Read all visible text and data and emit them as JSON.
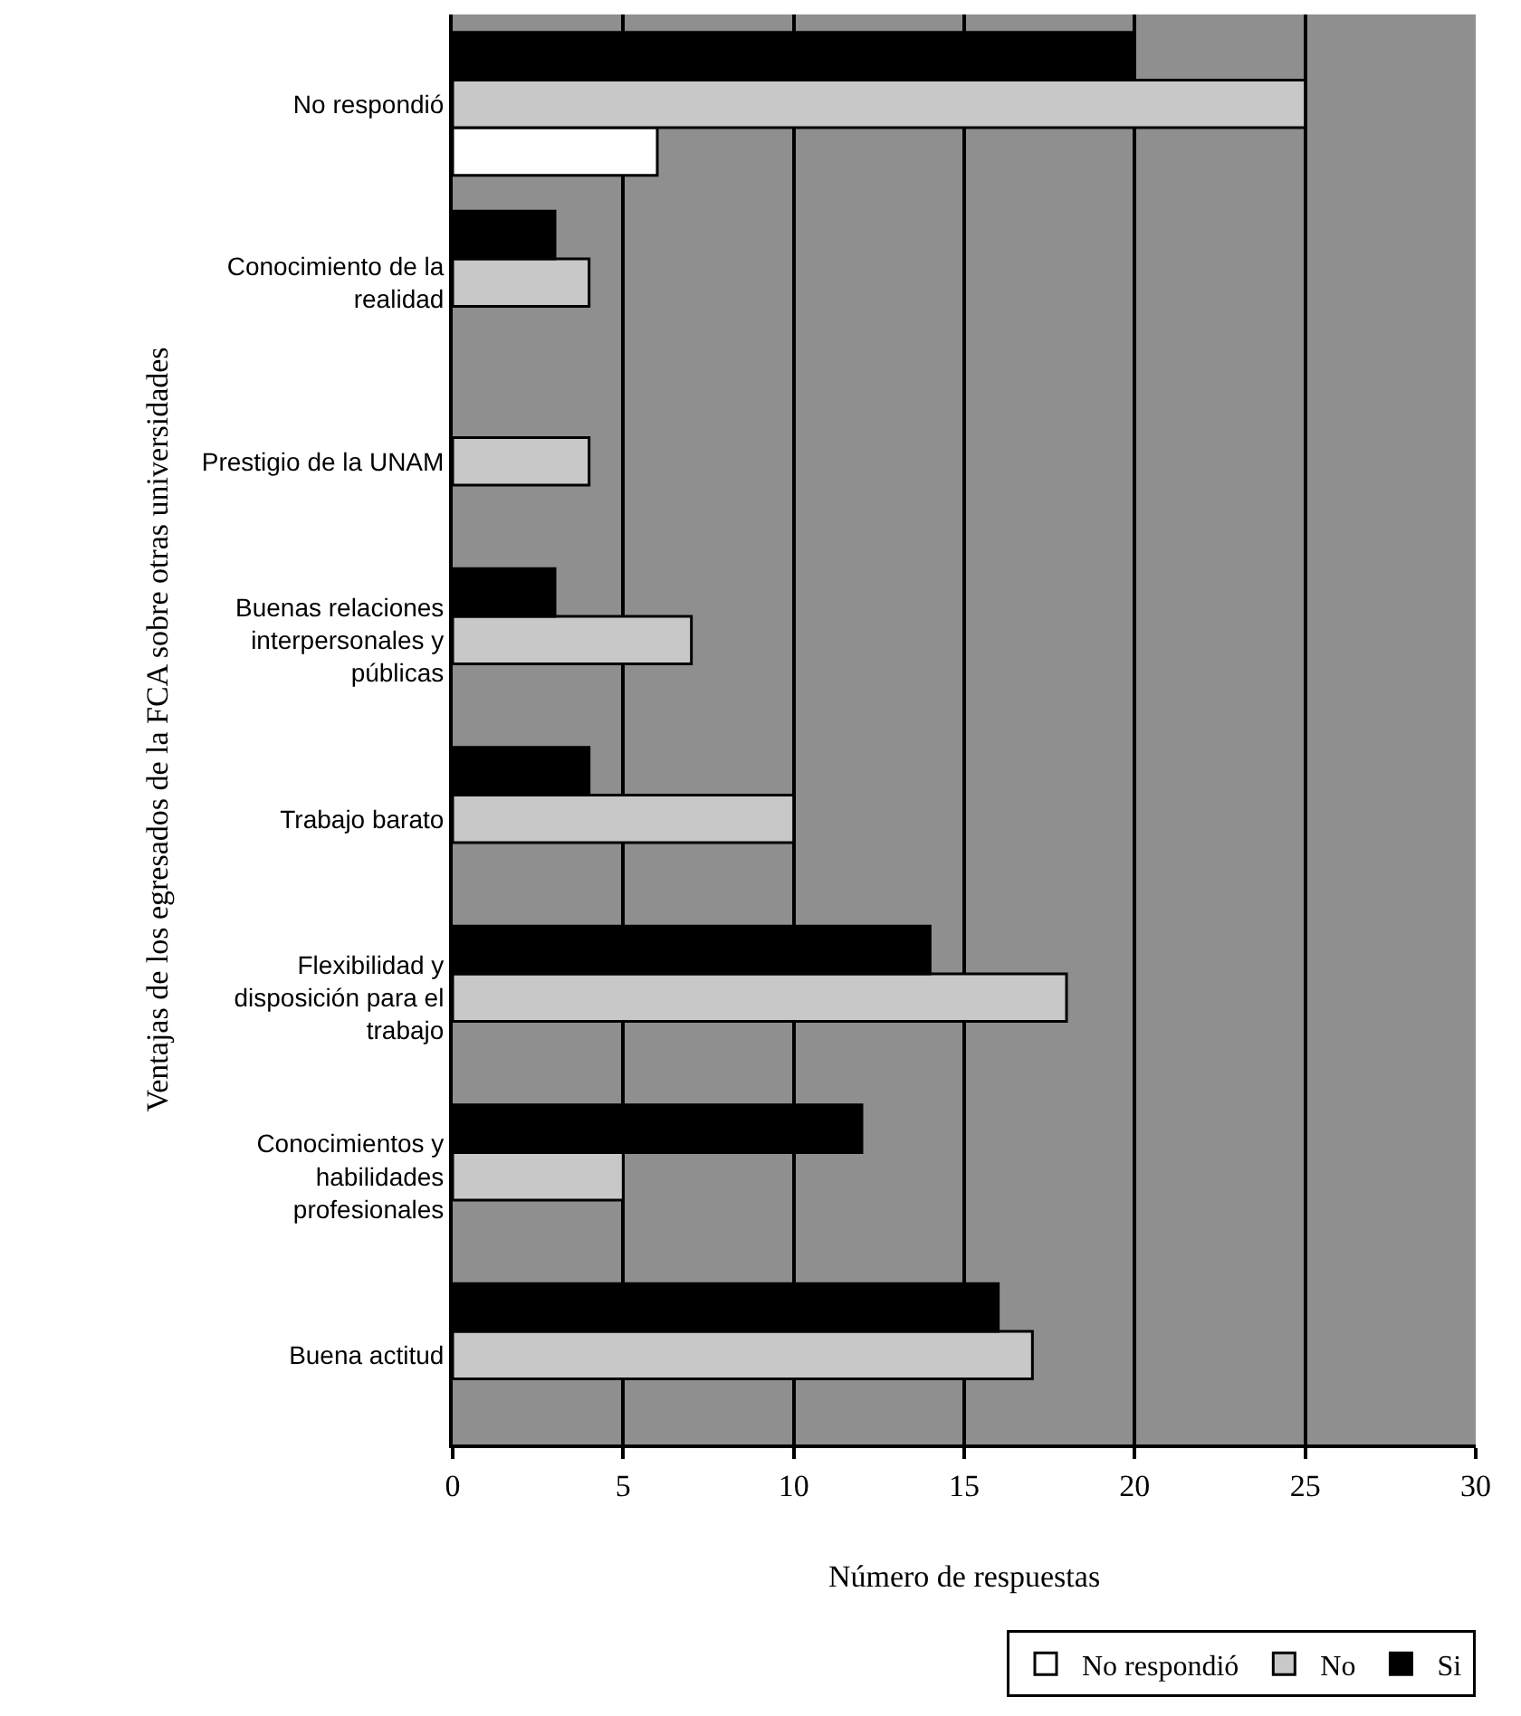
{
  "chart_data": {
    "type": "bar",
    "orientation": "horizontal",
    "categories": [
      "No respondió",
      "Conocimiento de la realidad",
      "Prestigio de la UNAM",
      "Buenas relaciones interpersonales y públicas",
      "Trabajo barato",
      "Flexibilidad y disposición para el trabajo",
      "Conocimientos y habilidades profesionales",
      "Buena actitud"
    ],
    "series": [
      {
        "name": "No respondió",
        "color": "#ffffff",
        "values": [
          6,
          0,
          0,
          0,
          0,
          0,
          0,
          0
        ]
      },
      {
        "name": "No",
        "color": "#c8c8c8",
        "values": [
          25,
          4,
          4,
          7,
          10,
          18,
          5,
          17
        ]
      },
      {
        "name": "Si",
        "color": "#000000",
        "values": [
          20,
          3,
          0,
          3,
          4,
          14,
          12,
          16
        ]
      }
    ],
    "xlabel": "Número de respuestas",
    "ylabel": "Ventajas de los egresados de la FCA sobre otras universidades",
    "xlim": [
      0,
      30
    ],
    "xticks": [
      0,
      5,
      10,
      15,
      20,
      25,
      30
    ],
    "grid": "x",
    "legend": "bottom right"
  }
}
